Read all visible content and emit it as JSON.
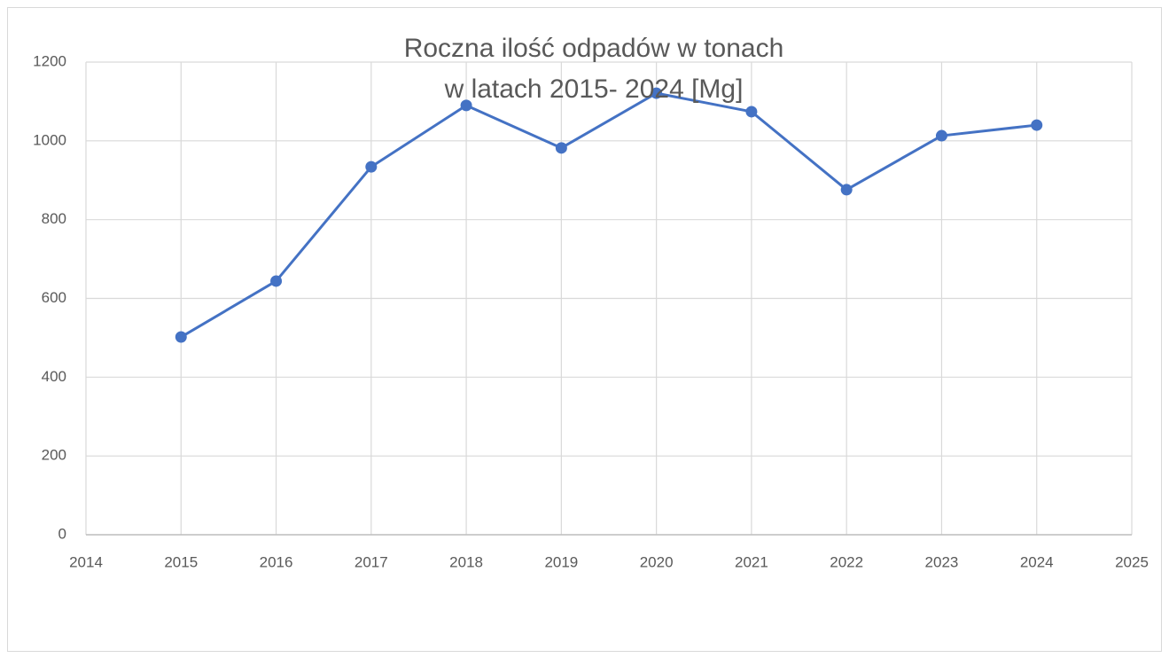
{
  "chart_data": {
    "type": "line",
    "title": [
      "Roczna ilość odpadów w tonach",
      "w latach 2015- 2024 [Mg]"
    ],
    "x": [
      2015,
      2016,
      2017,
      2018,
      2019,
      2020,
      2021,
      2022,
      2023,
      2024
    ],
    "series": [
      {
        "name": "Mg",
        "color": "#4472c4",
        "values": [
          502,
          644,
          934,
          1090,
          982,
          1121,
          1074,
          876,
          1013,
          1040
        ]
      }
    ],
    "xlim": [
      2014,
      2025
    ],
    "xticks": [
      2014,
      2015,
      2016,
      2017,
      2018,
      2019,
      2020,
      2021,
      2022,
      2023,
      2024,
      2025
    ],
    "ylim": [
      0,
      1200
    ],
    "yticks": [
      0,
      200,
      400,
      600,
      800,
      1000,
      1200
    ],
    "grid": true
  }
}
